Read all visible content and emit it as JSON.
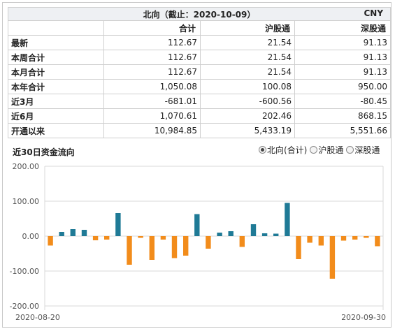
{
  "table": {
    "title": "北向（截止：2020-10-09）",
    "currency": "CNY",
    "columns": [
      "合计",
      "沪股通",
      "深股通"
    ],
    "rows": [
      {
        "label": "最新",
        "values": [
          "112.67",
          "21.54",
          "91.13"
        ]
      },
      {
        "label": "本周合计",
        "values": [
          "112.67",
          "21.54",
          "91.13"
        ]
      },
      {
        "label": "本月合计",
        "values": [
          "112.67",
          "21.54",
          "91.13"
        ]
      },
      {
        "label": "本年合计",
        "values": [
          "1,050.08",
          "100.08",
          "950.00"
        ]
      },
      {
        "label": "近3月",
        "values": [
          "-681.01",
          "-600.56",
          "-80.45"
        ]
      },
      {
        "label": "近6月",
        "values": [
          "1,070.61",
          "202.46",
          "868.15"
        ]
      },
      {
        "label": "开通以来",
        "values": [
          "10,984.85",
          "5,433.19",
          "5,551.66"
        ]
      }
    ]
  },
  "chart_section": {
    "title": "近30日资金流向",
    "options": [
      {
        "label": "北向(合计)",
        "checked": true
      },
      {
        "label": "沪股通",
        "checked": false
      },
      {
        "label": "深股通",
        "checked": false
      }
    ]
  },
  "colors": {
    "positive": "#1f7a96",
    "negative": "#f28c1b",
    "grid": "#d8d8d8"
  },
  "chart_data": {
    "type": "bar",
    "title": "",
    "ylim": [
      -200,
      200
    ],
    "yticks": [
      -200,
      -100,
      0,
      100,
      200
    ],
    "ytick_labels": [
      "-200.00",
      "-100.00",
      "0.00",
      "100.00",
      "200.00"
    ],
    "x_labels": [
      "2020-08-20",
      "2020-09-30"
    ],
    "values": [
      -27,
      12,
      20,
      18,
      -12,
      -10,
      66,
      -82,
      -5,
      -68,
      -10,
      -63,
      -56,
      63,
      -36,
      10,
      14,
      -31,
      34,
      8,
      7,
      95,
      -66,
      -19,
      -27,
      -122,
      -13,
      -10,
      -5,
      -29
    ],
    "grid": true
  }
}
